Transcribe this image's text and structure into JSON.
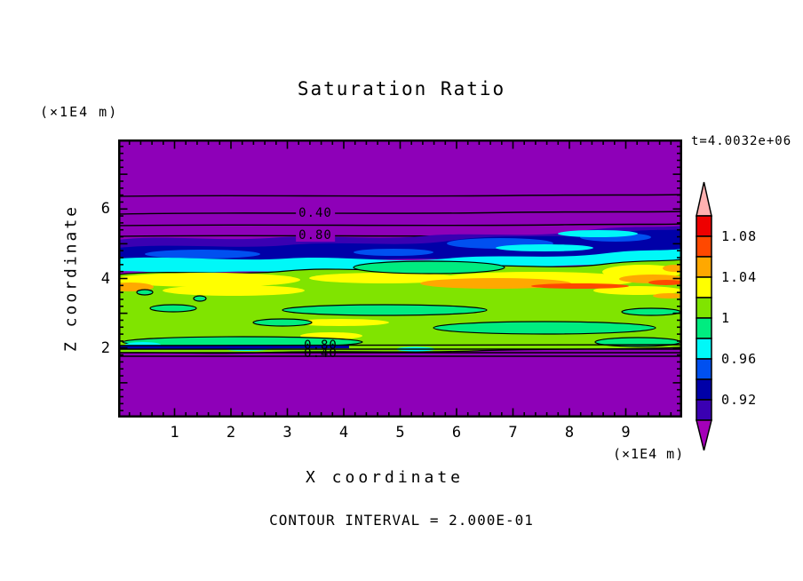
{
  "palette": {
    "purple": "#8E00B8",
    "indigo": "#3A00B2",
    "navy": "#0000A8",
    "blue": "#0050F0",
    "cyan": "#00F8F8",
    "spring": "#00EC80",
    "lime": "#80E400",
    "yellow": "#FFFF00",
    "orange": "#FFA800",
    "ored": "#FF4800",
    "red": "#EE0000",
    "pink": "#FFB0B0"
  },
  "chart_data": {
    "type": "heatmap",
    "title": "Saturation Ratio",
    "xlabel": "X coordinate",
    "ylabel": "Z coordinate",
    "x_unit": "(×1E4 m)",
    "y_unit": "(×1E4 m)",
    "xlim": [
      0,
      10
    ],
    "ylim": [
      0,
      8
    ],
    "x_ticks": [
      1,
      2,
      3,
      4,
      5,
      6,
      7,
      8,
      9
    ],
    "y_ticks": [
      2,
      4,
      6
    ],
    "x_minor_step": 0.2,
    "y_minor_step": 0.2,
    "time_annotation": "t=4.0032e+06",
    "contour_interval_note": "CONTOUR INTERVAL = 2.000E-01",
    "contour_line_labels": [
      "0.40",
      "0.80"
    ],
    "field_bands_top_to_bottom": [
      {
        "z_range_x1e4": [
          5.5,
          8.0
        ],
        "value_range": "< 0.90",
        "color": "purple, thin contour lines 0.20/0.40/0.60/0.80"
      },
      {
        "z_range_x1e4": [
          5.0,
          5.5
        ],
        "value_range": "0.90 - 0.96",
        "color": "indigo / navy / blue wavy band"
      },
      {
        "z_range_x1e4": [
          4.7,
          5.0
        ],
        "value_range": "0.96 - 0.98",
        "color": "cyan band"
      },
      {
        "z_range_x1e4": [
          2.0,
          4.7
        ],
        "value_range": "0.98 - 1.08",
        "color": "green field with yellow, orange and red-orange streaks and spring-green lenses"
      },
      {
        "z_range_x1e4": [
          0.0,
          2.0
        ],
        "value_range": "< 0.90",
        "color": "purple, compressed contour lines 0.80/0.60/0.40/0.20"
      }
    ]
  },
  "colorbar": {
    "tick_labels": [
      "1.08",
      "1.04",
      "1",
      "0.96",
      "0.92"
    ],
    "level_step": 0.02,
    "box_bounds_top_to_bottom": [
      1.1,
      1.08,
      1.06,
      1.04,
      1.02,
      1.0,
      0.98,
      0.96,
      0.94,
      0.92,
      0.9
    ],
    "box_colors_top_to_bottom": [
      "#EE0000",
      "#FF4800",
      "#FFA800",
      "#FFFF00",
      "#80E400",
      "#00EC80",
      "#00F8F8",
      "#0050F0",
      "#0000A8",
      "#3A00B2"
    ],
    "tip_top_color": "#FFB0B0",
    "tip_bottom_color": "#A400B8"
  }
}
